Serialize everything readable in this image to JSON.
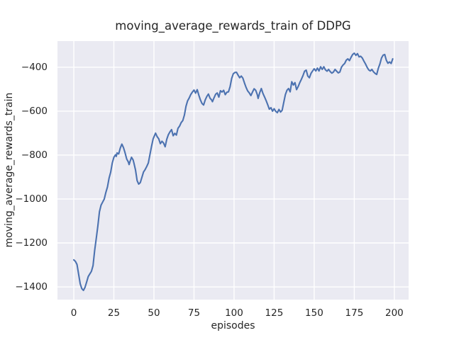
{
  "chart_data": {
    "type": "line",
    "title": "moving_average_rewards_train of DDPG",
    "xlabel": "episodes",
    "ylabel": "moving_average_rewards_train",
    "x_ticks": [
      0,
      25,
      50,
      75,
      100,
      125,
      150,
      175,
      200
    ],
    "y_ticks": [
      -1400,
      -1200,
      -1000,
      -800,
      -600,
      -400
    ],
    "xlim": [
      -10.2,
      208.9
    ],
    "ylim": [
      -1458,
      -281
    ],
    "grid": true,
    "legend_position": "none",
    "colors": {
      "line": "#4c72b0",
      "plot_background": "#eaeaf2",
      "grid": "#ffffff",
      "figure_background": "#ffffff",
      "text": "#262626"
    },
    "series": [
      {
        "name": "moving_average_rewards_train",
        "points": [
          [
            0,
            -1277
          ],
          [
            1,
            -1284
          ],
          [
            2,
            -1298
          ],
          [
            3,
            -1342
          ],
          [
            4,
            -1386
          ],
          [
            5,
            -1408
          ],
          [
            6,
            -1416
          ],
          [
            7,
            -1402
          ],
          [
            8,
            -1378
          ],
          [
            9,
            -1353
          ],
          [
            10,
            -1341
          ],
          [
            11,
            -1329
          ],
          [
            12,
            -1303
          ],
          [
            13,
            -1235
          ],
          [
            14,
            -1180
          ],
          [
            15,
            -1123
          ],
          [
            16,
            -1058
          ],
          [
            17,
            -1028
          ],
          [
            18,
            -1014
          ],
          [
            19,
            -1000
          ],
          [
            20,
            -970
          ],
          [
            21,
            -945
          ],
          [
            22,
            -905
          ],
          [
            23,
            -878
          ],
          [
            24,
            -836
          ],
          [
            25,
            -810
          ],
          [
            26,
            -799
          ],
          [
            26.5,
            -806
          ],
          [
            27,
            -790
          ],
          [
            28,
            -795
          ],
          [
            29,
            -768
          ],
          [
            30,
            -750
          ],
          [
            31,
            -766
          ],
          [
            32,
            -790
          ],
          [
            33,
            -818
          ],
          [
            34,
            -831
          ],
          [
            34.5,
            -843
          ],
          [
            35,
            -831
          ],
          [
            36,
            -810
          ],
          [
            37,
            -822
          ],
          [
            37.5,
            -836
          ],
          [
            38.5,
            -868
          ],
          [
            39.5,
            -916
          ],
          [
            40.5,
            -932
          ],
          [
            41.5,
            -925
          ],
          [
            42.5,
            -901
          ],
          [
            43.5,
            -877
          ],
          [
            44.5,
            -866
          ],
          [
            45.5,
            -852
          ],
          [
            46.5,
            -836
          ],
          [
            47.5,
            -798
          ],
          [
            48.5,
            -760
          ],
          [
            49.5,
            -726
          ],
          [
            51,
            -700
          ],
          [
            52,
            -716
          ],
          [
            53,
            -726
          ],
          [
            54,
            -748
          ],
          [
            55,
            -737
          ],
          [
            56,
            -745
          ],
          [
            57,
            -762
          ],
          [
            58,
            -728
          ],
          [
            59,
            -707
          ],
          [
            60,
            -694
          ],
          [
            61,
            -684
          ],
          [
            62,
            -712
          ],
          [
            63,
            -701
          ],
          [
            64,
            -709
          ],
          [
            65,
            -678
          ],
          [
            66,
            -668
          ],
          [
            67,
            -652
          ],
          [
            68,
            -643
          ],
          [
            69,
            -618
          ],
          [
            70,
            -578
          ],
          [
            71,
            -553
          ],
          [
            72,
            -540
          ],
          [
            73,
            -524
          ],
          [
            74,
            -513
          ],
          [
            75,
            -504
          ],
          [
            76,
            -518
          ],
          [
            77,
            -502
          ],
          [
            78,
            -527
          ],
          [
            79,
            -549
          ],
          [
            80,
            -565
          ],
          [
            81,
            -572
          ],
          [
            82,
            -549
          ],
          [
            83,
            -533
          ],
          [
            84,
            -522
          ],
          [
            85,
            -541
          ],
          [
            86,
            -549
          ],
          [
            86.5,
            -557
          ],
          [
            87.5,
            -539
          ],
          [
            88.5,
            -523
          ],
          [
            89.5,
            -517
          ],
          [
            90.5,
            -536
          ],
          [
            91.5,
            -507
          ],
          [
            92.5,
            -513
          ],
          [
            93.5,
            -505
          ],
          [
            94.5,
            -525
          ],
          [
            95.5,
            -514
          ],
          [
            96.5,
            -512
          ],
          [
            97.5,
            -489
          ],
          [
            98.5,
            -451
          ],
          [
            99.5,
            -430
          ],
          [
            100.5,
            -424
          ],
          [
            101.5,
            -423
          ],
          [
            102.5,
            -436
          ],
          [
            103.5,
            -448
          ],
          [
            104.5,
            -440
          ],
          [
            105.5,
            -450
          ],
          [
            106.5,
            -472
          ],
          [
            107.5,
            -492
          ],
          [
            108.5,
            -508
          ],
          [
            109.5,
            -517
          ],
          [
            110.5,
            -529
          ],
          [
            111.5,
            -513
          ],
          [
            112.5,
            -498
          ],
          [
            113.5,
            -505
          ],
          [
            114.5,
            -525
          ],
          [
            115,
            -542
          ],
          [
            116,
            -516
          ],
          [
            117,
            -497
          ],
          [
            118,
            -519
          ],
          [
            119,
            -535
          ],
          [
            120,
            -552
          ],
          [
            121,
            -571
          ],
          [
            122,
            -591
          ],
          [
            123,
            -584
          ],
          [
            124,
            -600
          ],
          [
            125,
            -589
          ],
          [
            126,
            -601
          ],
          [
            127,
            -607
          ],
          [
            128,
            -592
          ],
          [
            129,
            -604
          ],
          [
            130,
            -596
          ],
          [
            131,
            -560
          ],
          [
            132,
            -525
          ],
          [
            133,
            -505
          ],
          [
            134,
            -497
          ],
          [
            135,
            -512
          ],
          [
            136,
            -466
          ],
          [
            137,
            -481
          ],
          [
            138,
            -470
          ],
          [
            139,
            -502
          ],
          [
            140,
            -488
          ],
          [
            141,
            -470
          ],
          [
            142,
            -455
          ],
          [
            143,
            -438
          ],
          [
            144,
            -418
          ],
          [
            145,
            -413
          ],
          [
            146,
            -440
          ],
          [
            147,
            -448
          ],
          [
            148,
            -428
          ],
          [
            149,
            -417
          ],
          [
            150,
            -407
          ],
          [
            151,
            -417
          ],
          [
            152,
            -404
          ],
          [
            153,
            -417
          ],
          [
            154,
            -398
          ],
          [
            155,
            -410
          ],
          [
            156,
            -398
          ],
          [
            157,
            -412
          ],
          [
            158,
            -418
          ],
          [
            159,
            -410
          ],
          [
            160,
            -420
          ],
          [
            161,
            -427
          ],
          [
            162,
            -422
          ],
          [
            163,
            -410
          ],
          [
            164,
            -418
          ],
          [
            165,
            -426
          ],
          [
            166,
            -422
          ],
          [
            167,
            -400
          ],
          [
            168,
            -390
          ],
          [
            169,
            -383
          ],
          [
            170,
            -368
          ],
          [
            171,
            -362
          ],
          [
            172,
            -370
          ],
          [
            173,
            -355
          ],
          [
            174,
            -342
          ],
          [
            175,
            -336
          ],
          [
            176,
            -346
          ],
          [
            177,
            -338
          ],
          [
            178,
            -353
          ],
          [
            179,
            -350
          ],
          [
            180,
            -358
          ],
          [
            181,
            -372
          ],
          [
            182,
            -385
          ],
          [
            183,
            -400
          ],
          [
            184,
            -412
          ],
          [
            185,
            -417
          ],
          [
            186,
            -410
          ],
          [
            187,
            -421
          ],
          [
            188,
            -428
          ],
          [
            189,
            -433
          ],
          [
            190,
            -405
          ],
          [
            191,
            -385
          ],
          [
            192,
            -358
          ],
          [
            193,
            -345
          ],
          [
            194,
            -342
          ],
          [
            195,
            -368
          ],
          [
            196,
            -382
          ],
          [
            197,
            -376
          ],
          [
            198,
            -383
          ],
          [
            199,
            -362
          ]
        ]
      }
    ]
  }
}
